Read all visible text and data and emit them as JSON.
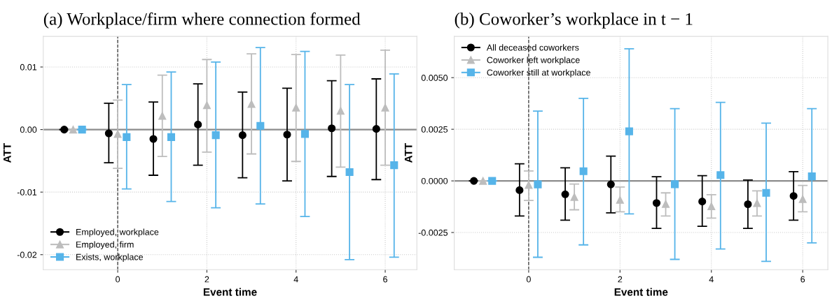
{
  "chart_data": [
    {
      "type": "scatter",
      "title": "(a) Workplace/firm where connection formed",
      "xlabel": "Event time",
      "ylabel": "ATT",
      "xlim": [
        -1.67,
        6.71
      ],
      "xticks": [
        0,
        2,
        4,
        6
      ],
      "ylim": [
        -0.0224,
        0.0149
      ],
      "yticks": [
        {
          "value": -0.02,
          "label": "-0.02"
        },
        {
          "value": -0.01,
          "label": "-0.01"
        },
        {
          "value": 0,
          "label": "0.00"
        },
        {
          "value": 0.01,
          "label": "0.01"
        }
      ],
      "grid": true,
      "legend": "bottom left",
      "ref_lines": [
        {
          "axis": "y",
          "value": 0,
          "color": "#8c8c8c",
          "line_style": "solid"
        },
        {
          "axis": "x",
          "value": 0,
          "color": "#333333",
          "line_style": "dashed"
        }
      ],
      "series": [
        {
          "name": "Employed, workplace",
          "color": "#000000",
          "marker": "circle",
          "x": [
            -1.2,
            -0.2,
            0.8,
            1.8,
            2.8,
            3.8,
            4.8,
            5.8
          ],
          "values": [
            0,
            -0.0006,
            -0.0015,
            0.0008,
            -0.0009,
            -0.0008,
            0.0002,
            0.0001
          ],
          "errors": [
            null,
            [
              -0.0053,
              0.0042
            ],
            [
              -0.0073,
              0.0044
            ],
            [
              -0.0057,
              0.0073
            ],
            [
              -0.0077,
              0.006
            ],
            [
              -0.0082,
              0.0066
            ],
            [
              -0.0075,
              0.0078
            ],
            [
              -0.008,
              0.0081
            ]
          ]
        },
        {
          "name": "Employed, firm",
          "color": "#bdbdbd",
          "marker": "triangle",
          "x": [
            -1,
            0,
            1,
            2,
            3,
            4,
            5,
            6
          ],
          "values": [
            0,
            -0.0007,
            0.0022,
            0.0039,
            0.0041,
            0.0035,
            0.003,
            0.0035
          ],
          "errors": [
            null,
            [
              -0.0062,
              0.0047
            ],
            [
              -0.0043,
              0.0087
            ],
            [
              -0.0036,
              0.0112
            ],
            [
              -0.0039,
              0.0121
            ],
            [
              -0.0051,
              0.012
            ],
            [
              -0.006,
              0.0119
            ],
            [
              -0.0057,
              0.0127
            ]
          ]
        },
        {
          "name": "Exists, workplace",
          "color": "#56b4e9",
          "marker": "square",
          "x": [
            -0.8,
            0.2,
            1.2,
            2.2,
            3.2,
            4.2,
            5.2,
            6.2
          ],
          "values": [
            0,
            -0.0012,
            -0.0012,
            -0.0009,
            0.0006,
            -0.0007,
            -0.0068,
            -0.0057
          ],
          "errors": [
            null,
            [
              -0.0095,
              0.0072
            ],
            [
              -0.0115,
              0.0092
            ],
            [
              -0.0125,
              0.0108
            ],
            [
              -0.0119,
              0.0131
            ],
            [
              -0.0139,
              0.0125
            ],
            [
              -0.0208,
              0.0072
            ],
            [
              -0.0204,
              0.0089
            ]
          ]
        }
      ]
    },
    {
      "type": "scatter",
      "title": "(b) Coworker’s workplace in t − 1",
      "xlabel": "Event time",
      "ylabel": "ATT",
      "xlim": [
        -1.63,
        6.55
      ],
      "xticks": [
        0,
        2,
        4,
        6
      ],
      "ylim": [
        -0.0043,
        0.007
      ],
      "yticks": [
        {
          "value": -0.0025,
          "label": "-0.0025"
        },
        {
          "value": 0,
          "label": "0.0000"
        },
        {
          "value": 0.0025,
          "label": "0.0025"
        },
        {
          "value": 0.005,
          "label": "0.0050"
        }
      ],
      "grid": true,
      "legend": "top left",
      "ref_lines": [
        {
          "axis": "y",
          "value": 0,
          "color": "#8c8c8c",
          "line_style": "solid"
        },
        {
          "axis": "x",
          "value": 0,
          "color": "#333333",
          "line_style": "dashed"
        }
      ],
      "series": [
        {
          "name": "All deceased coworkers",
          "color": "#000000",
          "marker": "circle",
          "x": [
            -1.2,
            -0.2,
            0.8,
            1.8,
            2.8,
            3.8,
            4.8,
            5.8
          ],
          "values": [
            0,
            -0.00045,
            -0.00065,
            -0.00017,
            -0.00107,
            -0.001,
            -0.00113,
            -0.00073
          ],
          "errors": [
            null,
            [
              -0.0017,
              0.00083
            ],
            [
              -0.0019,
              0.00063
            ],
            [
              -0.00155,
              0.0012
            ],
            [
              -0.0023,
              0.0002
            ],
            [
              -0.0022,
              0.00025
            ],
            [
              -0.0023,
              4e-05
            ],
            [
              -0.0019,
              0.00045
            ]
          ]
        },
        {
          "name": "Coworker left workplace",
          "color": "#bdbdbd",
          "marker": "triangle",
          "x": [
            -1,
            0,
            1,
            2,
            3,
            4,
            5,
            6
          ],
          "values": [
            0,
            -0.0002,
            -0.00078,
            -0.00092,
            -0.00112,
            -0.00123,
            -0.00108,
            -0.00088
          ],
          "errors": [
            null,
            [
              -0.00095,
              0.00048
            ],
            [
              -0.0014,
              -0.00015
            ],
            [
              -0.0015,
              -0.0003
            ],
            [
              -0.0017,
              -0.00058
            ],
            [
              -0.0018,
              -0.00067
            ],
            [
              -0.0017,
              -0.00048
            ],
            [
              -0.0015,
              -0.00022
            ]
          ]
        },
        {
          "name": "Coworker still at workplace",
          "color": "#56b4e9",
          "marker": "square",
          "x": [
            -0.8,
            0.2,
            1.2,
            2.2,
            3.2,
            4.2,
            5.2,
            6.2
          ],
          "values": [
            0,
            -0.00017,
            0.00047,
            0.0024,
            -0.00016,
            0.00028,
            -0.00058,
            0.00022
          ],
          "errors": [
            null,
            [
              -0.0037,
              0.00338
            ],
            [
              -0.0031,
              0.004
            ],
            [
              -0.0016,
              0.0064
            ],
            [
              -0.0038,
              0.0035
            ],
            [
              -0.0033,
              0.0038
            ],
            [
              -0.0039,
              0.0028
            ],
            [
              -0.003,
              0.0035
            ]
          ]
        }
      ]
    }
  ]
}
